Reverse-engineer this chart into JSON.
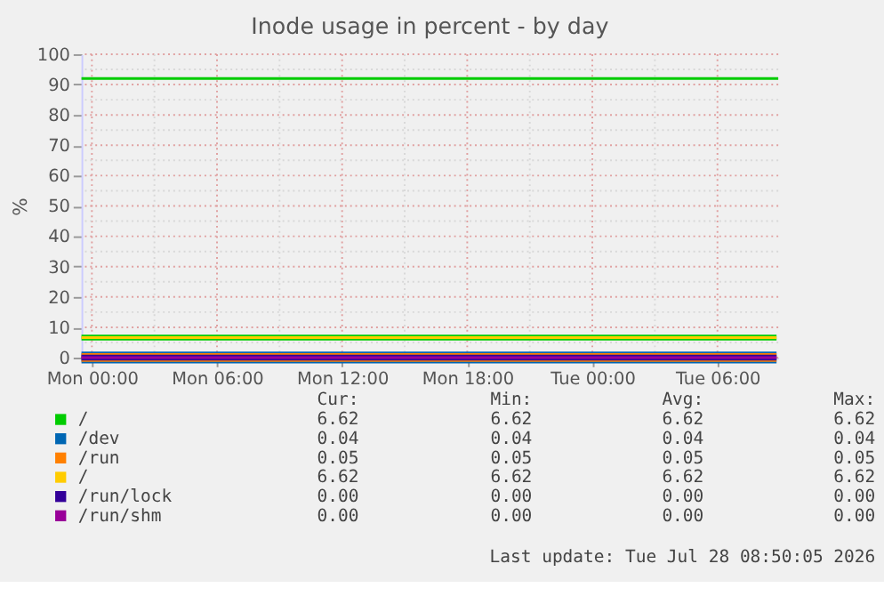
{
  "chart_data": {
    "type": "line",
    "title": "Inode usage in percent - by day",
    "ylabel": "%",
    "x": [
      "2026-07-26T23:30",
      "2026-07-27T10:30",
      "2026-07-27T21:30",
      "2026-07-28T08:50"
    ],
    "xlim": [
      "2026-07-26T23:30",
      "2026-07-28T08:55"
    ],
    "xticks": [
      {
        "value": "2026-07-27T00:00",
        "label": "Mon 00:00"
      },
      {
        "value": "2026-07-27T06:00",
        "label": "Mon 06:00"
      },
      {
        "value": "2026-07-27T12:00",
        "label": "Mon 12:00"
      },
      {
        "value": "2026-07-27T18:00",
        "label": "Mon 18:00"
      },
      {
        "value": "2026-07-28T00:00",
        "label": "Tue 00:00"
      },
      {
        "value": "2026-07-28T06:00",
        "label": "Tue 06:00"
      }
    ],
    "ylim": [
      0,
      100
    ],
    "yticks": [
      0,
      10,
      20,
      30,
      40,
      50,
      60,
      70,
      80,
      90,
      100
    ],
    "series": [
      {
        "name": "/",
        "color": "#00cc00",
        "values": [
          6.62,
          6.62,
          6.62,
          6.62
        ]
      },
      {
        "name": "/dev",
        "color": "#0066b3",
        "values": [
          0.04,
          0.04,
          0.04,
          0.04
        ]
      },
      {
        "name": "/run",
        "color": "#ff8000",
        "values": [
          0.05,
          0.05,
          0.05,
          0.05
        ]
      },
      {
        "name": "/",
        "color": "#ffcc00",
        "values": [
          6.62,
          6.62,
          6.62,
          6.62
        ]
      },
      {
        "name": "/run/lock",
        "color": "#330099",
        "values": [
          0.0,
          0.0,
          0.0,
          0.0
        ]
      },
      {
        "name": "/run/shm",
        "color": "#990099",
        "values": [
          0.0,
          0.0,
          0.0,
          0.0
        ]
      }
    ],
    "ref_lines": [
      {
        "axis": "y",
        "value": 92,
        "label": null,
        "color": "#00cc00"
      }
    ],
    "annotations": [
      "Cur:",
      "Min:",
      "Avg:",
      "Max:",
      "6.62",
      "6.62",
      "6.62",
      "6.62",
      "0.04",
      "0.04",
      "0.04",
      "0.04",
      "0.05",
      "0.05",
      "0.05",
      "0.05",
      "6.62",
      "6.62",
      "6.62",
      "6.62",
      "0.00",
      "0.00",
      "0.00",
      "0.00",
      "0.00",
      "0.00",
      "0.00",
      "0.00",
      "Last update: Tue Jul 28 08:50:05 2026"
    ],
    "grid": true,
    "legend": "bottom",
    "marker": "none",
    "line_style": "solid"
  }
}
